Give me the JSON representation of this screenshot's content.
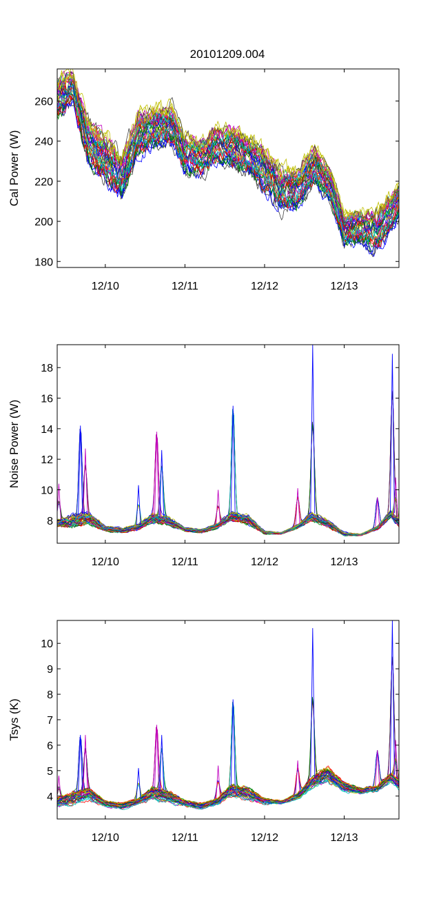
{
  "figure": {
    "title": "20101209.004",
    "series_count": 40,
    "series_colors": [
      "#0000ff",
      "#008000",
      "#ff0000",
      "#00bfbf",
      "#bf00bf",
      "#bfbf00",
      "#404040"
    ]
  },
  "chart_data": [
    {
      "type": "line",
      "title": "20101209.004",
      "xlabel": "",
      "ylabel": "Cal Power (W)",
      "x_range": [
        "12/09 09:30",
        "12/13 16:30"
      ],
      "xticks": [
        "12/10",
        "12/11",
        "12/12",
        "12/13"
      ],
      "yticks": [
        "180",
        "200",
        "220",
        "240",
        "260"
      ],
      "ylim": [
        177,
        276
      ],
      "grid": false,
      "legend": "none",
      "x": [
        "12/09 09:30",
        "12/09 14:00",
        "12/09 19:00",
        "12/10 00:00",
        "12/10 05:00",
        "12/10 10:00",
        "12/10 15:00",
        "12/10 20:00",
        "12/11 00:00",
        "12/11 05:00",
        "12/11 10:00",
        "12/11 15:00",
        "12/11 20:00",
        "12/12 00:00",
        "12/12 05:00",
        "12/12 10:00",
        "12/12 15:00",
        "12/12 20:00",
        "12/13 00:00",
        "12/13 05:00",
        "12/13 10:00",
        "12/13 16:30"
      ],
      "series": [
        {
          "values": [
            252,
            260,
            229,
            222,
            212,
            234,
            238,
            239,
            226,
            224,
            231,
            228,
            223,
            216,
            207,
            208,
            220,
            210,
            189,
            190,
            186,
            203
          ]
        },
        {
          "values": [
            271,
            274,
            249,
            242,
            232,
            254,
            255,
            257,
            243,
            240,
            247,
            245,
            241,
            235,
            225,
            225,
            237,
            224,
            203,
            205,
            204,
            218
          ]
        }
      ]
    },
    {
      "type": "line",
      "title": "",
      "xlabel": "",
      "ylabel": "Noise Power (W)",
      "x_range": [
        "12/09 09:30",
        "12/13 16:30"
      ],
      "xticks": [
        "12/10",
        "12/11",
        "12/12",
        "12/13"
      ],
      "yticks": [
        "8",
        "10",
        "12",
        "14",
        "16",
        "18"
      ],
      "ylim": [
        6.5,
        19.5
      ],
      "grid": false,
      "legend": "none",
      "x": [
        "12/09 09:30",
        "12/09 14:00",
        "12/09 19:00",
        "12/10 00:00",
        "12/10 05:00",
        "12/10 10:00",
        "12/10 14:00",
        "12/10 19:00",
        "12/11 00:00",
        "12/11 05:00",
        "12/11 10:00",
        "12/11 14:00",
        "12/11 19:00",
        "12/12 00:00",
        "12/12 05:00",
        "12/12 10:00",
        "12/12 14:00",
        "12/12 19:00",
        "12/13 00:00",
        "12/13 05:00",
        "12/13 10:00",
        "12/13 14:00",
        "12/13 16:30"
      ],
      "series": [
        {
          "values": [
            7.6,
            7.6,
            7.8,
            7.3,
            7.2,
            7.4,
            7.9,
            7.7,
            7.3,
            7.2,
            7.5,
            8.0,
            7.8,
            7.1,
            7.1,
            7.5,
            8.0,
            7.6,
            7.0,
            7.0,
            7.4,
            8.2,
            7.6
          ]
        },
        {
          "values": [
            8.0,
            8.3,
            8.5,
            7.6,
            7.5,
            7.7,
            8.4,
            8.2,
            7.5,
            7.4,
            7.8,
            8.5,
            8.3,
            7.3,
            7.2,
            7.7,
            8.5,
            8.0,
            7.2,
            7.1,
            7.6,
            8.6,
            8.0
          ]
        }
      ],
      "peaks": [
        {
          "x": "12/09 10:00",
          "value": 10.4
        },
        {
          "x": "12/09 16:30",
          "value": 14.2
        },
        {
          "x": "12/09 18:00",
          "value": 12.7
        },
        {
          "x": "12/10 10:00",
          "value": 10.3
        },
        {
          "x": "12/10 15:30",
          "value": 13.8
        },
        {
          "x": "12/10 17:00",
          "value": 12.6
        },
        {
          "x": "12/11 10:00",
          "value": 10.0
        },
        {
          "x": "12/11 14:30",
          "value": 15.5
        },
        {
          "x": "12/12 10:00",
          "value": 10.1
        },
        {
          "x": "12/12 14:30",
          "value": 19.5
        },
        {
          "x": "12/13 10:00",
          "value": 9.5
        },
        {
          "x": "12/13 14:30",
          "value": 18.9
        },
        {
          "x": "12/13 15:30",
          "value": 10.8
        }
      ]
    },
    {
      "type": "line",
      "title": "",
      "xlabel": "",
      "ylabel": "Tsys (K)",
      "x_range": [
        "12/09 09:30",
        "12/13 16:30"
      ],
      "xticks": [
        "12/10",
        "12/11",
        "12/12",
        "12/13"
      ],
      "yticks": [
        "4",
        "5",
        "6",
        "7",
        "8",
        "9",
        "10"
      ],
      "ylim": [
        3.1,
        10.9
      ],
      "grid": false,
      "legend": "none",
      "x": [
        "12/09 09:30",
        "12/09 14:00",
        "12/09 19:00",
        "12/10 00:00",
        "12/10 05:00",
        "12/10 10:00",
        "12/10 14:00",
        "12/10 19:00",
        "12/11 00:00",
        "12/11 05:00",
        "12/11 10:00",
        "12/11 14:00",
        "12/11 19:00",
        "12/12 00:00",
        "12/12 05:00",
        "12/12 10:00",
        "12/12 14:00",
        "12/12 19:00",
        "12/13 00:00",
        "12/13 05:00",
        "12/13 10:00",
        "12/13 14:00",
        "12/13 16:30"
      ],
      "series": [
        {
          "values": [
            3.6,
            3.7,
            3.9,
            3.6,
            3.5,
            3.7,
            3.9,
            3.8,
            3.6,
            3.5,
            3.7,
            4.0,
            3.9,
            3.7,
            3.7,
            3.9,
            4.3,
            4.6,
            4.2,
            4.1,
            4.2,
            4.6,
            4.3
          ]
        },
        {
          "values": [
            3.9,
            4.1,
            4.3,
            3.8,
            3.7,
            3.9,
            4.3,
            4.2,
            3.8,
            3.7,
            3.9,
            4.4,
            4.3,
            3.9,
            3.8,
            4.1,
            4.7,
            5.1,
            4.5,
            4.3,
            4.4,
            4.9,
            4.6
          ]
        }
      ],
      "peaks": [
        {
          "x": "12/09 10:00",
          "value": 4.8
        },
        {
          "x": "12/09 16:30",
          "value": 6.4
        },
        {
          "x": "12/09 18:00",
          "value": 6.4
        },
        {
          "x": "12/10 10:00",
          "value": 5.1
        },
        {
          "x": "12/10 15:30",
          "value": 6.8
        },
        {
          "x": "12/10 17:00",
          "value": 6.4
        },
        {
          "x": "12/11 10:00",
          "value": 5.2
        },
        {
          "x": "12/11 14:30",
          "value": 7.8
        },
        {
          "x": "12/12 10:00",
          "value": 5.4
        },
        {
          "x": "12/12 14:30",
          "value": 10.6
        },
        {
          "x": "12/13 10:00",
          "value": 5.8
        },
        {
          "x": "12/13 14:30",
          "value": 10.9
        },
        {
          "x": "12/13 15:30",
          "value": 6.2
        }
      ]
    }
  ]
}
